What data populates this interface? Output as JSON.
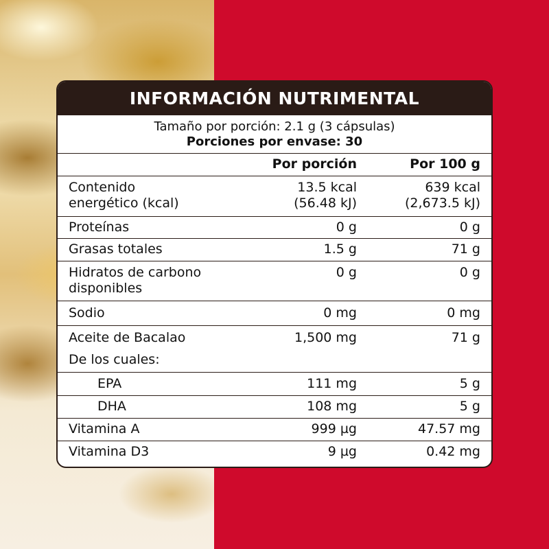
{
  "title": "INFORMACIÓN NUTRIMENTAL",
  "serving_size": "Tamaño por porción: 2.1 g (3 cápsulas)",
  "servings_per_container": "Porciones por envase: 30",
  "columns": {
    "per_serving": "Por porción",
    "per_100g": "Por 100 g"
  },
  "rows": [
    {
      "label_line1": "Contenido",
      "label_line2": "energético (kcal)",
      "per_serving_line1": "13.5 kcal",
      "per_serving_line2": "(56.48 kJ)",
      "per_100g_line1": "639 kcal",
      "per_100g_line2": "(2,673.5 kJ)"
    },
    {
      "label": "Proteínas",
      "per_serving": "0 g",
      "per_100g": "0 g"
    },
    {
      "label": "Grasas totales",
      "per_serving": "1.5 g",
      "per_100g": "71 g"
    },
    {
      "label_line1": "Hidratos de carbono",
      "label_line2": "disponibles",
      "per_serving": "0 g",
      "per_100g": "0 g"
    },
    {
      "label": "Sodio",
      "per_serving": "0 mg",
      "per_100g": "0 mg"
    },
    {
      "label": "Aceite de Bacalao",
      "per_serving": "1,500 mg",
      "per_100g": "71 g",
      "sublabel": "De los cuales:"
    },
    {
      "label": "EPA",
      "per_serving": "111 mg",
      "per_100g": "5 g"
    },
    {
      "label": "DHA",
      "per_serving": "108 mg",
      "per_100g": "5 g"
    },
    {
      "label": "Vitamina A",
      "per_serving": "999 µg",
      "per_100g": "47.57 mg"
    },
    {
      "label": "Vitamina D3",
      "per_serving": "9 µg",
      "per_100g": "0.42 mg"
    }
  ],
  "colors": {
    "background_right": "#cf0a2c",
    "header": "#2a1b16",
    "panel": "#ffffff"
  }
}
